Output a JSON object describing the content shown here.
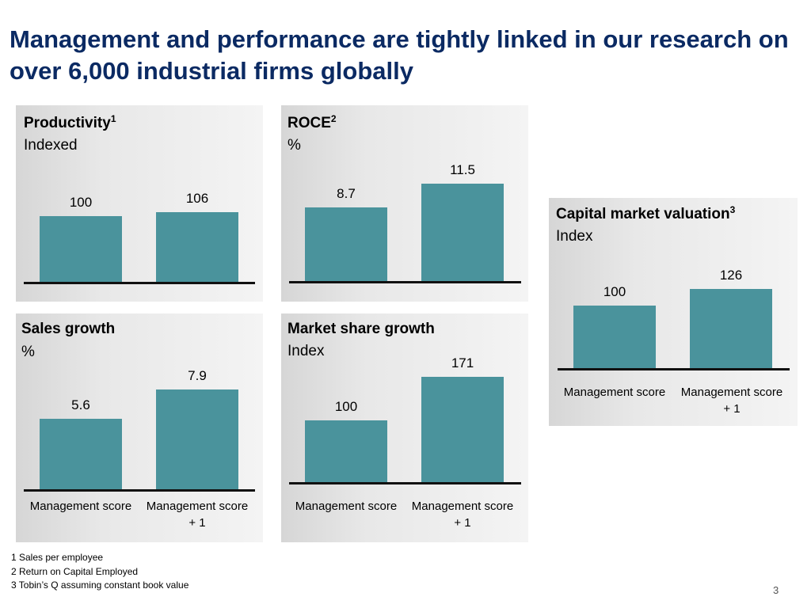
{
  "title": "Management and performance are tightly linked in our research on over 6,000 industrial firms globally",
  "categories": [
    "Management score",
    "Management score + 1"
  ],
  "chart_data": [
    {
      "type": "bar",
      "title": "Productivity",
      "footnote_ref": "1",
      "unit": "Indexed",
      "categories": [
        "Management score",
        "Management score + 1"
      ],
      "values": [
        100,
        106
      ],
      "labels": [
        "100",
        "106"
      ]
    },
    {
      "type": "bar",
      "title": "ROCE",
      "footnote_ref": "2",
      "unit": "%",
      "categories": [
        "Management score",
        "Management score + 1"
      ],
      "values": [
        8.7,
        11.5
      ],
      "labels": [
        "8.7",
        "11.5"
      ]
    },
    {
      "type": "bar",
      "title": "Capital market valuation",
      "footnote_ref": "3",
      "unit": "Index",
      "categories": [
        "Management score",
        "Management score + 1"
      ],
      "values": [
        100,
        126
      ],
      "labels": [
        "100",
        "126"
      ]
    },
    {
      "type": "bar",
      "title": "Sales growth",
      "footnote_ref": "",
      "unit": "%",
      "categories": [
        "Management score",
        "Management score + 1"
      ],
      "values": [
        5.6,
        7.9
      ],
      "labels": [
        "5.6",
        "7.9"
      ]
    },
    {
      "type": "bar",
      "title": "Market share growth",
      "footnote_ref": "",
      "unit": "Index",
      "categories": [
        "Management score",
        "Management score + 1"
      ],
      "values": [
        100,
        171
      ],
      "labels": [
        "100",
        "171"
      ]
    }
  ],
  "footnotes": [
    "1 Sales per employee",
    "2 Return on Capital Employed",
    "3 Tobin’s Q assuming constant book value"
  ],
  "page_number": "3",
  "colors": {
    "title": "#0b2a63",
    "bar": "#4a939c",
    "axis": "#111111",
    "panel": "#e6e6e6"
  }
}
